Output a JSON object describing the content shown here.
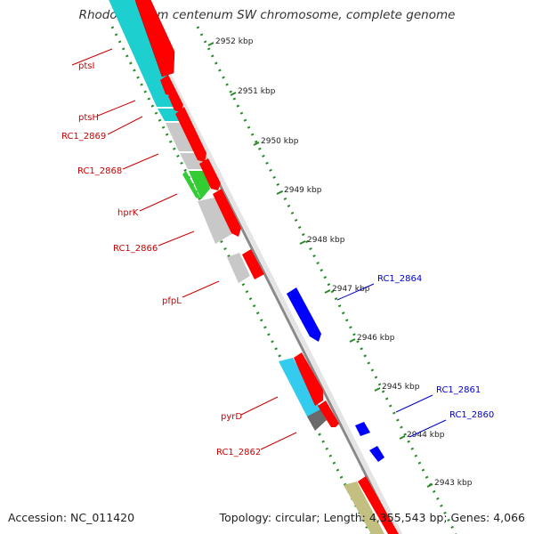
{
  "title": "Rhodospirillum centenum SW chromosome, complete genome",
  "footer": {
    "accession": "Accession: NC_011420",
    "summary": "Topology: circular; Length: 4,355,543 bp; Genes: 4,066"
  },
  "colors": {
    "forward_feature": "#ff0000",
    "reverse_feature": "#0000ff",
    "forward_label": "#cc0000",
    "reverse_label": "#0000cc",
    "backbone": "#9a9a9a",
    "tick_ring": "#2a8a2a",
    "cog_cyan": "#1ecfd0",
    "cog_lightblue": "#33ccee",
    "cog_green": "#33cc33",
    "cog_grey": "#c8c8c8",
    "cog_darkgrey": "#6a6a6a",
    "cog_khaki": "#c2bf80"
  },
  "scale_labels": [
    "2952 kbp",
    "2951 kbp",
    "2950 kbp",
    "2949 kbp",
    "2948 kbp",
    "2947 kbp",
    "2946 kbp",
    "2945 kbp",
    "2944 kbp",
    "2943 kbp"
  ],
  "gene_labels_forward": [
    "ptsI",
    "ptsH",
    "RC1_2869",
    "RC1_2868",
    "hprK",
    "RC1_2866",
    "pfpL",
    "pyrD",
    "RC1_2862"
  ],
  "gene_labels_reverse": [
    "RC1_2864",
    "RC1_2861",
    "RC1_2860"
  ]
}
